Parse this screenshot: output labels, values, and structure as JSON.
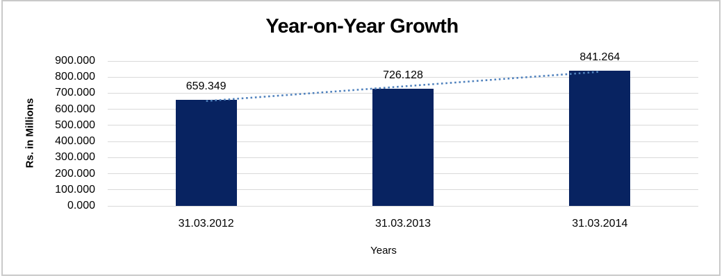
{
  "chart_data": {
    "type": "bar",
    "title": "Year-on-Year Growth",
    "xlabel": "Years",
    "ylabel": "Rs. in Millions",
    "categories": [
      "31.03.2012",
      "31.03.2013",
      "31.03.2014"
    ],
    "values": [
      659.349,
      726.128,
      841.264
    ],
    "data_labels": [
      "659.349",
      "726.128",
      "841.264"
    ],
    "ylim": [
      0,
      900
    ],
    "ytick_labels": [
      "0.000",
      "100.000",
      "200.000",
      "300.000",
      "400.000",
      "500.000",
      "600.000",
      "700.000",
      "800.000",
      "900.000"
    ],
    "grid": true,
    "legend": "none",
    "trendline": {
      "type": "linear",
      "style": "dotted"
    },
    "colors": {
      "bar": "#082361",
      "trendline": "#4f81bd",
      "gridline": "#d9d9d9",
      "text": "#000000",
      "frame_border": "#c9c9c9"
    }
  }
}
